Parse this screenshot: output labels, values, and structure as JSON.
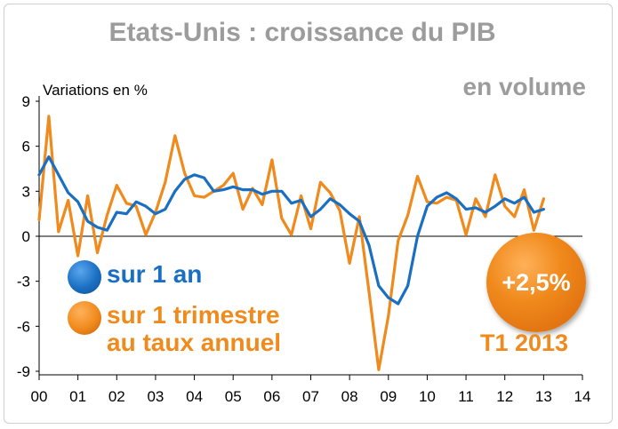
{
  "chart_data": {
    "type": "line",
    "title": "Etats-Unis : croissance du PIB",
    "subtitle": "en volume",
    "ylabel": "Variations en %",
    "ylim": [
      -9,
      9
    ],
    "yticks": [
      9,
      6,
      3,
      0,
      -3,
      -6,
      -9
    ],
    "xlim": [
      2000,
      2014
    ],
    "xticks": [
      "00",
      "01",
      "02",
      "03",
      "04",
      "05",
      "06",
      "07",
      "08",
      "09",
      "10",
      "11",
      "12",
      "13",
      "14"
    ],
    "grid": false,
    "series": [
      {
        "name": "sur 1 an",
        "color": "#1a6fc2",
        "x": [
          2000.0,
          2000.25,
          2000.5,
          2000.75,
          2001.0,
          2001.25,
          2001.5,
          2001.75,
          2002.0,
          2002.25,
          2002.5,
          2002.75,
          2003.0,
          2003.25,
          2003.5,
          2003.75,
          2004.0,
          2004.25,
          2004.5,
          2004.75,
          2005.0,
          2005.25,
          2005.5,
          2005.75,
          2006.0,
          2006.25,
          2006.5,
          2006.75,
          2007.0,
          2007.25,
          2007.5,
          2007.75,
          2008.0,
          2008.25,
          2008.5,
          2008.75,
          2009.0,
          2009.25,
          2009.5,
          2009.75,
          2010.0,
          2010.25,
          2010.5,
          2010.75,
          2011.0,
          2011.25,
          2011.5,
          2011.75,
          2012.0,
          2012.25,
          2012.5,
          2012.75,
          2013.0
        ],
        "values": [
          4.1,
          5.3,
          4.1,
          2.9,
          2.3,
          1.0,
          0.6,
          0.4,
          1.6,
          1.5,
          2.3,
          2.0,
          1.5,
          1.8,
          3.0,
          3.8,
          4.1,
          3.9,
          3.0,
          3.1,
          3.3,
          3.1,
          3.1,
          2.8,
          3.0,
          3.0,
          2.2,
          2.4,
          1.3,
          1.8,
          2.5,
          2.1,
          1.5,
          1.0,
          -0.6,
          -3.3,
          -4.1,
          -4.5,
          -3.3,
          0.0,
          2.0,
          2.6,
          2.9,
          2.5,
          1.8,
          1.9,
          1.6,
          2.0,
          2.5,
          2.2,
          2.6,
          1.6,
          1.8
        ]
      },
      {
        "name": "sur 1 trimestre au taux annuel",
        "color": "#f08a1c",
        "x": [
          2000.0,
          2000.25,
          2000.5,
          2000.75,
          2001.0,
          2001.25,
          2001.5,
          2001.75,
          2002.0,
          2002.25,
          2002.5,
          2002.75,
          2003.0,
          2003.25,
          2003.5,
          2003.75,
          2004.0,
          2004.25,
          2004.5,
          2004.75,
          2005.0,
          2005.25,
          2005.5,
          2005.75,
          2006.0,
          2006.25,
          2006.5,
          2006.75,
          2007.0,
          2007.25,
          2007.5,
          2007.75,
          2008.0,
          2008.25,
          2008.5,
          2008.75,
          2009.0,
          2009.25,
          2009.5,
          2009.75,
          2010.0,
          2010.25,
          2010.5,
          2010.75,
          2011.0,
          2011.25,
          2011.5,
          2011.75,
          2012.0,
          2012.25,
          2012.5,
          2012.75,
          2013.0
        ],
        "values": [
          1.1,
          8.0,
          0.3,
          2.4,
          -1.3,
          2.7,
          -1.1,
          1.4,
          3.4,
          2.2,
          2.0,
          0.1,
          1.6,
          3.6,
          6.7,
          4.2,
          2.7,
          2.6,
          3.0,
          3.4,
          4.2,
          1.8,
          3.2,
          2.1,
          5.1,
          1.2,
          0.1,
          2.7,
          0.5,
          3.6,
          2.9,
          1.7,
          -1.8,
          1.3,
          -3.7,
          -8.9,
          -5.3,
          -0.3,
          1.4,
          4.0,
          2.3,
          2.2,
          2.6,
          2.4,
          0.1,
          2.5,
          1.3,
          4.1,
          2.0,
          1.3,
          3.1,
          0.4,
          2.5
        ]
      }
    ]
  },
  "legend": {
    "items": [
      {
        "label": "sur 1 an",
        "color": "#1a6fc2"
      },
      {
        "label_line1": "sur 1 trimestre",
        "label_line2": "au taux annuel",
        "color": "#f08a1c"
      }
    ]
  },
  "callout": {
    "value": "+2,5%",
    "period": "T1 2013",
    "color": "#f08a1c"
  }
}
